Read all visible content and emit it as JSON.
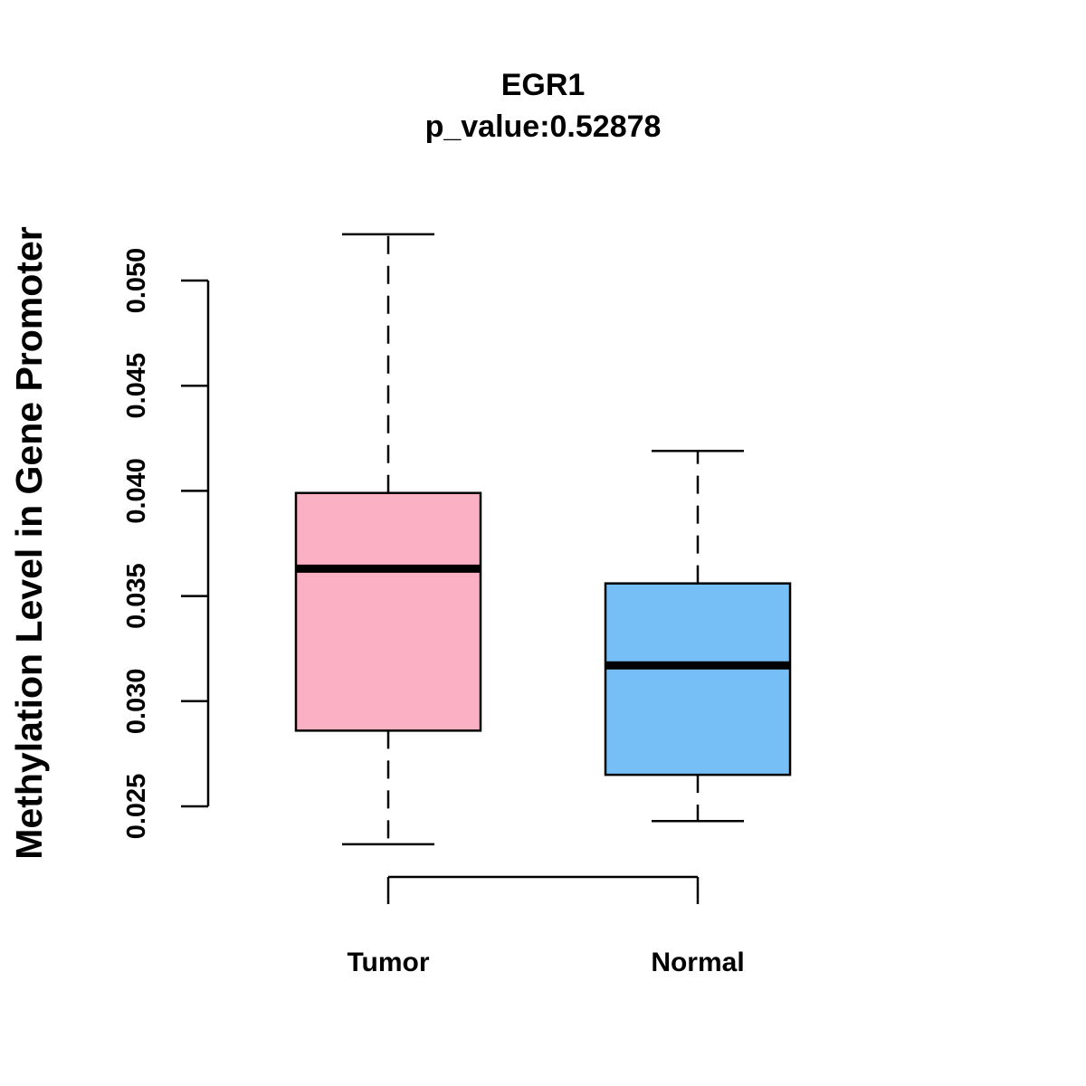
{
  "chart_data": {
    "type": "boxplot",
    "title": "EGR1",
    "subtitle": "p_value:0.52878",
    "xlabel": "",
    "ylabel": "Methylation Level in Gene Promoter",
    "ylim": [
      0.025,
      0.05
    ],
    "y_ticks": [
      0.025,
      0.03,
      0.035,
      0.04,
      0.045,
      0.05
    ],
    "y_tick_labels": [
      "0.025",
      "0.030",
      "0.035",
      "0.040",
      "0.045",
      "0.050"
    ],
    "categories": [
      "Tumor",
      "Normal"
    ],
    "boxes": [
      {
        "name": "Tumor",
        "whisker_low": 0.0232,
        "q1": 0.0286,
        "median": 0.0363,
        "q3": 0.0399,
        "whisker_high": 0.0522,
        "color": "#FBB1C3"
      },
      {
        "name": "Normal",
        "whisker_low": 0.0243,
        "q1": 0.0265,
        "median": 0.0317,
        "q3": 0.0356,
        "whisker_high": 0.0419,
        "color": "#76BFF6"
      }
    ],
    "grid": false,
    "legend": "none"
  }
}
